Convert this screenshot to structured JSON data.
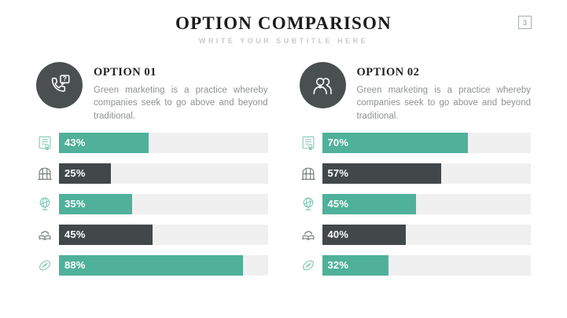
{
  "slide": {
    "title": "OPTION COMPARISON",
    "subtitle": "WRITE YOUR SUBTITLE HERE",
    "page_number": "3"
  },
  "colors": {
    "teal": "#4fb19a",
    "dark": "#42484a",
    "track": "#f0f0f0",
    "circle": "#4a504f",
    "icon_teal": "#7fc8b4",
    "icon_gray": "#6d7373"
  },
  "options": [
    {
      "label": "OPTION 01",
      "icon": "phone-question-icon",
      "description": "Green marketing is a practice whereby companies seek to go above and beyond traditional.",
      "bars": [
        {
          "icon": "certificate-icon",
          "label": "43%",
          "value": 43,
          "color": "teal"
        },
        {
          "icon": "greenhouse-icon",
          "label": "25%",
          "value": 25,
          "color": "dark"
        },
        {
          "icon": "globe-icon",
          "label": "35%",
          "value": 35,
          "color": "teal"
        },
        {
          "icon": "open-book-icon",
          "label": "45%",
          "value": 45,
          "color": "dark"
        },
        {
          "icon": "rugby-ball-icon",
          "label": "88%",
          "value": 88,
          "color": "teal"
        }
      ]
    },
    {
      "label": "OPTION 02",
      "icon": "two-users-icon",
      "description": "Green marketing is a practice whereby companies seek to go above and beyond traditional.",
      "bars": [
        {
          "icon": "certificate-icon",
          "label": "70%",
          "value": 70,
          "color": "teal"
        },
        {
          "icon": "greenhouse-icon",
          "label": "57%",
          "value": 57,
          "color": "dark"
        },
        {
          "icon": "globe-icon",
          "label": "45%",
          "value": 45,
          "color": "teal"
        },
        {
          "icon": "open-book-icon",
          "label": "40%",
          "value": 40,
          "color": "dark"
        },
        {
          "icon": "rugby-ball-icon",
          "label": "32%",
          "value": 32,
          "color": "teal"
        }
      ]
    }
  ],
  "chart_data": [
    {
      "type": "bar",
      "orientation": "horizontal",
      "title": "OPTION 01",
      "categories": [
        "certificate",
        "greenhouse",
        "globe",
        "open book",
        "rugby ball"
      ],
      "values": [
        43,
        25,
        35,
        45,
        88
      ],
      "data_labels": [
        "43%",
        "25%",
        "35%",
        "45%",
        "88%"
      ],
      "value_unit": "%",
      "xlim": [
        0,
        100
      ],
      "grid": false,
      "legend": false,
      "bar_colors": [
        "#4fb19a",
        "#42484a",
        "#4fb19a",
        "#42484a",
        "#4fb19a"
      ]
    },
    {
      "type": "bar",
      "orientation": "horizontal",
      "title": "OPTION 02",
      "categories": [
        "certificate",
        "greenhouse",
        "globe",
        "open book",
        "rugby ball"
      ],
      "values": [
        70,
        57,
        45,
        40,
        32
      ],
      "data_labels": [
        "70%",
        "57%",
        "45%",
        "40%",
        "32%"
      ],
      "value_unit": "%",
      "xlim": [
        0,
        100
      ],
      "grid": false,
      "legend": false,
      "bar_colors": [
        "#4fb19a",
        "#42484a",
        "#4fb19a",
        "#42484a",
        "#4fb19a"
      ]
    }
  ]
}
